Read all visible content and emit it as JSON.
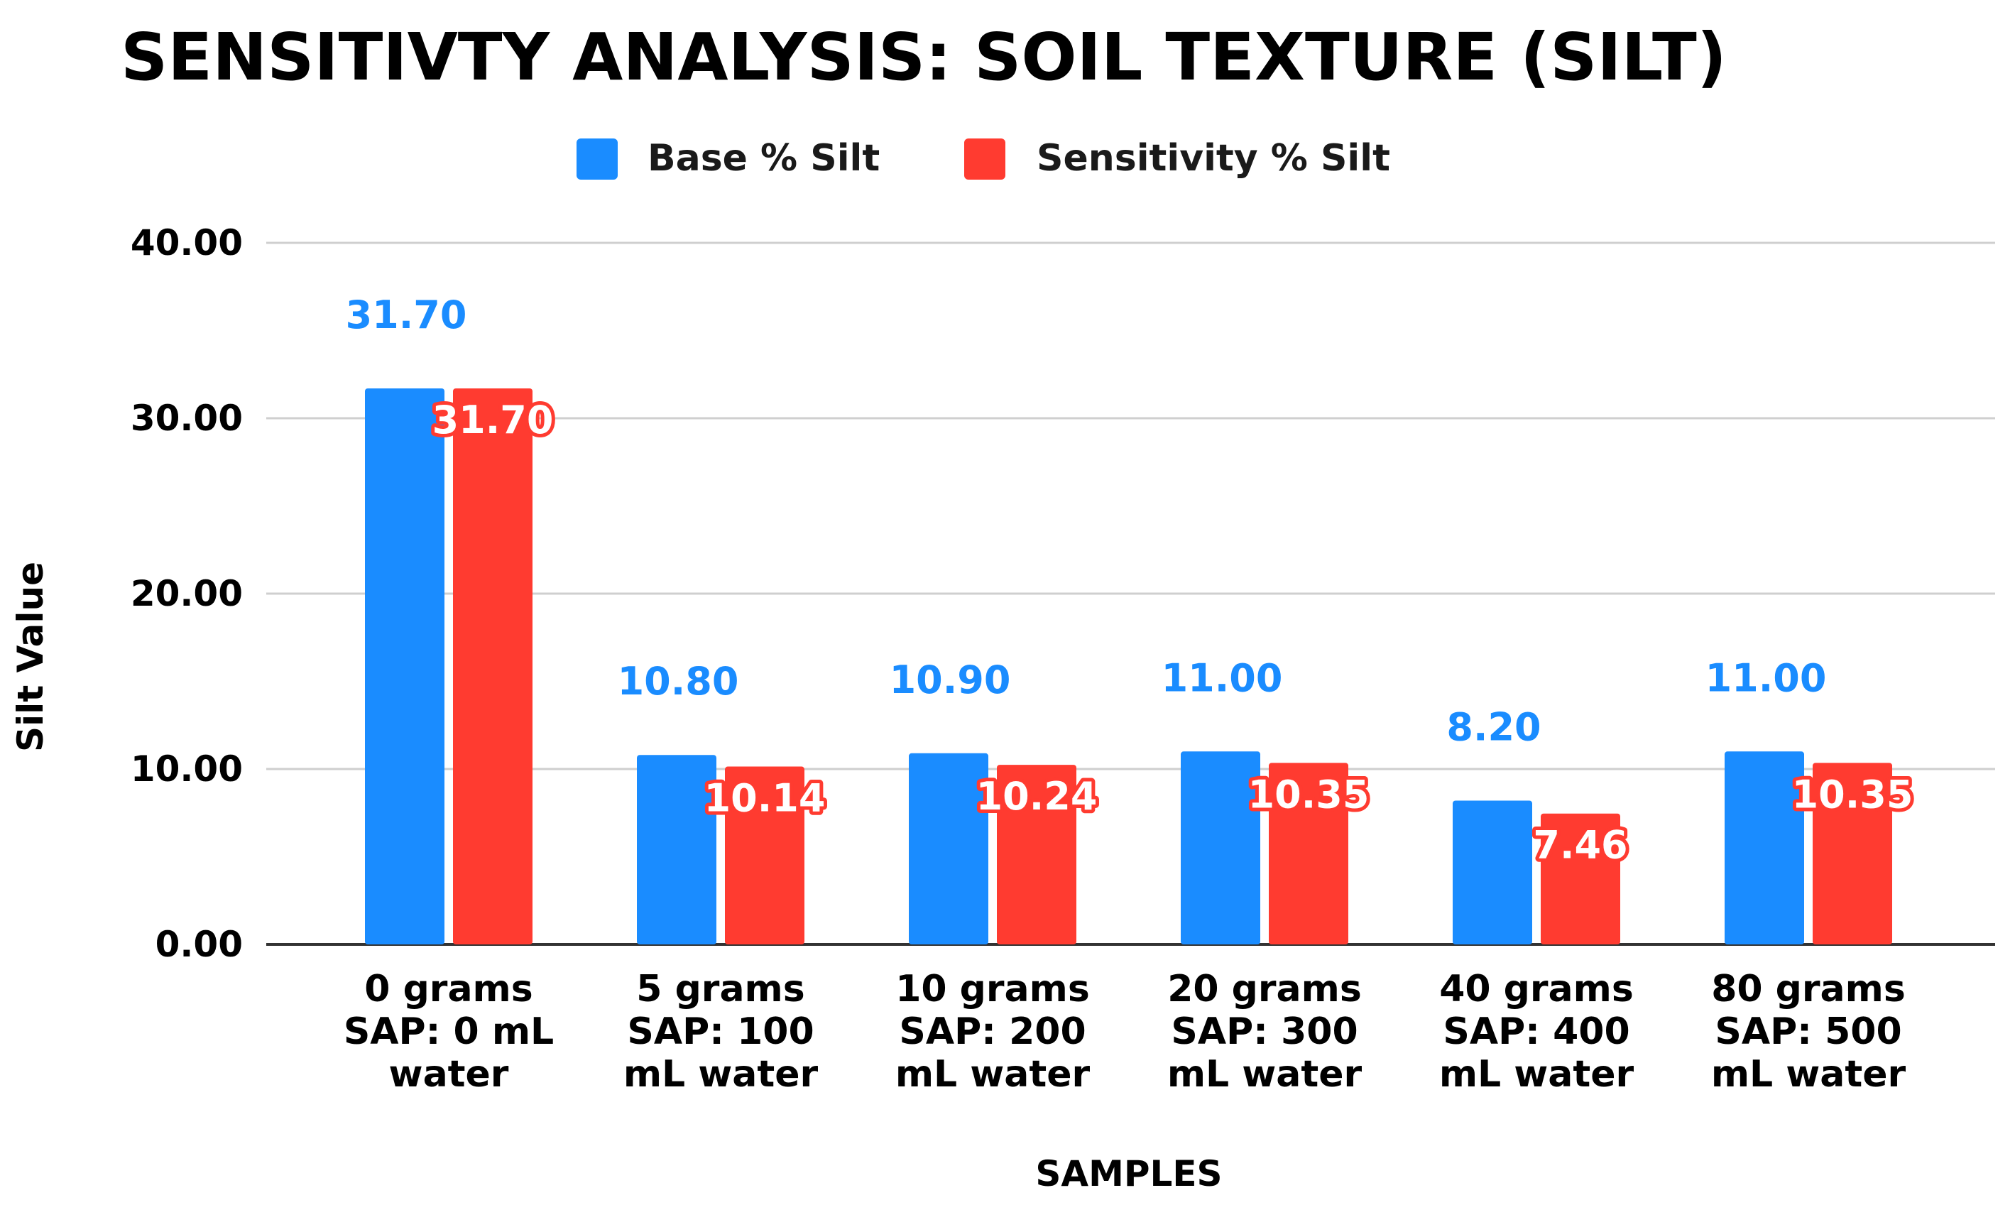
{
  "chart_data": {
    "type": "bar",
    "title": "SENSITIVTY ANALYSIS: SOIL TEXTURE (SILT)",
    "xlabel": "SAMPLES",
    "ylabel": "Silt Value",
    "ylim": [
      0,
      40
    ],
    "yticks": [
      "0.00",
      "10.00",
      "20.00",
      "30.00",
      "40.00"
    ],
    "grid": true,
    "legend_position": "top-center",
    "categories": [
      [
        "0 grams",
        "SAP: 0 mL",
        "water"
      ],
      [
        "5 grams",
        "SAP: 100",
        "mL water"
      ],
      [
        "10 grams",
        "SAP: 200",
        "mL water"
      ],
      [
        "20 grams",
        "SAP: 300",
        "mL water"
      ],
      [
        "40 grams",
        "SAP: 400",
        "mL water"
      ],
      [
        "80 grams",
        "SAP: 500",
        "mL water"
      ]
    ],
    "series": [
      {
        "name": "Base % Silt",
        "color": "#1a8cff",
        "values": [
          31.7,
          10.8,
          10.9,
          11.0,
          8.2,
          11.0
        ],
        "labels": [
          "31.70",
          "10.80",
          "10.90",
          "11.00",
          "8.20",
          "11.00"
        ]
      },
      {
        "name": "Sensitivity % Silt",
        "color": "#ff3b30",
        "values": [
          31.7,
          10.14,
          10.24,
          10.35,
          7.46,
          10.35
        ],
        "labels": [
          "31.70",
          "10.14",
          "10.24",
          "10.35",
          "7.46",
          "10.35"
        ]
      }
    ]
  }
}
